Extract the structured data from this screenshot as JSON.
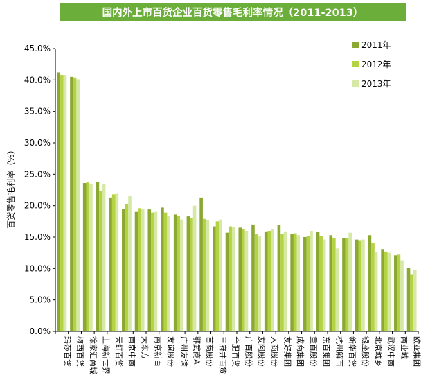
{
  "chart_data": {
    "type": "bar",
    "title": "国内外上市百货企业百货零售毛利率情况（2011-2013）",
    "ylabel": "百货零售毛利率（%）",
    "xlabel": "",
    "ylim": [
      0,
      45
    ],
    "yticks": [
      "0.0%",
      "5.0%",
      "10.0%",
      "15.0%",
      "20.0%",
      "25.0%",
      "30.0%",
      "35.0%",
      "40.0%",
      "45.0%"
    ],
    "legend_position": "top-right",
    "grid": false,
    "categories": [
      "玛莎百货",
      "梅西百货",
      "徐家汇商城",
      "上海新世界",
      "天虹百货",
      "南京中商",
      "大东方",
      "南京新百",
      "友谊股份",
      "广州友谊",
      "鄂武商A",
      "首商股份",
      "王府井百货",
      "合肥百货",
      "广百股份",
      "友阿股份",
      "大商股份",
      "友好集团",
      "成商集团",
      "重百股份",
      "东百集团",
      "杭州解百",
      "新华百货",
      "银座股份",
      "北京城乡",
      "武汉中商",
      "商业城",
      "欧亚集团"
    ],
    "series": [
      {
        "name": "2011年",
        "color": "#8aa832",
        "values": [
          41.2,
          40.5,
          23.6,
          23.8,
          21.3,
          19.5,
          19.0,
          19.4,
          19.7,
          18.6,
          18.3,
          21.3,
          16.7,
          15.7,
          16.5,
          17.0,
          15.9,
          16.9,
          15.5,
          15.0,
          15.8,
          15.3,
          14.8,
          14.6,
          15.3,
          13.1,
          12.1,
          10.1
        ]
      },
      {
        "name": "2012年",
        "color": "#b4d242",
        "values": [
          40.8,
          40.4,
          23.7,
          22.4,
          21.8,
          20.3,
          19.6,
          18.9,
          18.9,
          18.4,
          18.0,
          17.9,
          17.5,
          16.7,
          16.3,
          15.5,
          16.0,
          15.5,
          15.6,
          15.2,
          15.2,
          14.9,
          14.8,
          14.5,
          14.1,
          12.7,
          12.2,
          9.1
        ]
      },
      {
        "name": "2013年",
        "color": "#d5e8a6",
        "values": [
          40.8,
          40.1,
          23.5,
          23.4,
          21.9,
          21.5,
          19.4,
          19.0,
          18.4,
          17.8,
          20.0,
          17.7,
          17.8,
          16.6,
          16.0,
          15.1,
          16.3,
          15.9,
          15.3,
          16.0,
          14.6,
          13.2,
          15.7,
          14.6,
          12.6,
          12.5,
          11.3,
          9.8
        ]
      }
    ]
  }
}
